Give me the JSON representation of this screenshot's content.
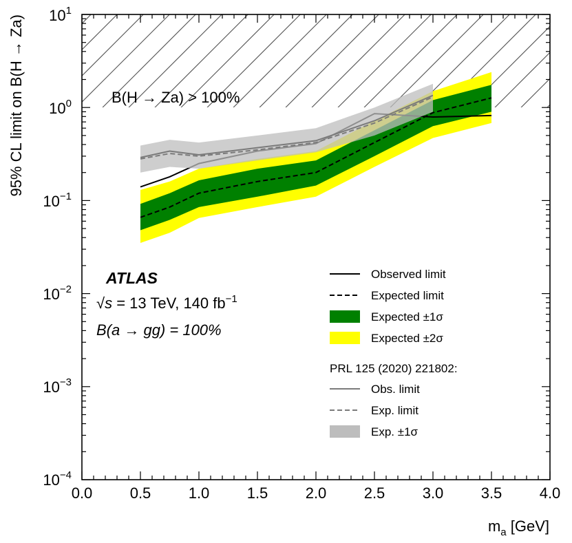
{
  "chart_data": {
    "type": "line",
    "xlabel_main": "m",
    "xlabel_sub": "a",
    "xlabel_unit": "[GeV]",
    "ylabel": "95% CL limit on B(H → Za)",
    "xlim": [
      0.0,
      4.0
    ],
    "ylim": [
      0.0001,
      10
    ],
    "y_scale": "log",
    "x_ticks": [
      "0.0",
      "0.5",
      "1.0",
      "1.5",
      "2.0",
      "2.5",
      "3.0",
      "3.5",
      "4.0"
    ],
    "y_ticks": [
      {
        "base": "10",
        "exp": "1",
        "value": 10
      },
      {
        "base": "10",
        "exp": "0",
        "value": 1
      },
      {
        "base": "10",
        "exp": "−1",
        "value": 0.1
      },
      {
        "base": "10",
        "exp": "−2",
        "value": 0.01
      },
      {
        "base": "10",
        "exp": "−3",
        "value": 0.001
      },
      {
        "base": "10",
        "exp": "−4",
        "value": 0.0001
      }
    ],
    "excluded_region": {
      "label": "B(H → Za) > 100%",
      "y_min": 1
    },
    "experiment": "ATLAS",
    "energy_label": {
      "sqrt": "√",
      "s": "s",
      "rest": " = 13 TeV, 140 fb",
      "sup": "−1"
    },
    "br_label": "B(a → gg) = 100%",
    "x": [
      0.5,
      0.75,
      1.0,
      1.5,
      2.0,
      2.5,
      3.0,
      3.5
    ],
    "series": [
      {
        "name": "Observed limit",
        "style": "solid",
        "color": "#000000",
        "values": [
          0.14,
          0.18,
          0.25,
          0.34,
          0.41,
          0.86,
          0.79,
          0.82
        ]
      },
      {
        "name": "Expected limit",
        "style": "dashed",
        "color": "#000000",
        "values": [
          0.066,
          0.085,
          0.12,
          0.16,
          0.2,
          0.42,
          0.88,
          1.27
        ]
      }
    ],
    "bands": [
      {
        "name": "Expected ±2σ",
        "color": "#ffff00",
        "lower": [
          0.035,
          0.045,
          0.065,
          0.085,
          0.11,
          0.23,
          0.47,
          0.68
        ],
        "upper": [
          0.13,
          0.16,
          0.22,
          0.28,
          0.34,
          0.72,
          1.5,
          2.4
        ]
      },
      {
        "name": "Expected ±1σ",
        "color": "#008000",
        "lower": [
          0.048,
          0.062,
          0.085,
          0.11,
          0.145,
          0.3,
          0.63,
          0.9
        ],
        "upper": [
          0.092,
          0.12,
          0.165,
          0.22,
          0.27,
          0.57,
          1.2,
          1.75
        ]
      }
    ],
    "prl": {
      "title": "PRL 125 (2020) 221802:",
      "x": [
        0.5,
        0.75,
        1.0,
        1.5,
        2.0,
        2.5,
        3.0
      ],
      "band": {
        "name": "Exp. ±1σ",
        "color": "#bdbdbd",
        "lower": [
          0.2,
          0.23,
          0.22,
          0.27,
          0.33,
          0.5,
          0.9
        ],
        "upper": [
          0.39,
          0.45,
          0.42,
          0.5,
          0.6,
          1.0,
          1.8
        ]
      },
      "series": [
        {
          "name": "Obs. limit",
          "style": "solid",
          "color": "#7a7a7a",
          "values": [
            0.29,
            0.34,
            0.31,
            0.37,
            0.44,
            0.72,
            1.35
          ]
        },
        {
          "name": "Exp. limit",
          "style": "dashed",
          "color": "#7a7a7a",
          "values": [
            0.28,
            0.32,
            0.3,
            0.35,
            0.42,
            0.68,
            1.3
          ]
        }
      ]
    },
    "legend": [
      {
        "label": "Observed limit",
        "kind": "line",
        "style": "solid",
        "color": "#000000"
      },
      {
        "label": "Expected limit",
        "kind": "line",
        "style": "dashed",
        "color": "#000000"
      },
      {
        "label": "Expected ±1σ",
        "kind": "box",
        "color": "#008000"
      },
      {
        "label": "Expected ±2σ",
        "kind": "box",
        "color": "#ffff00"
      }
    ],
    "legend_prl": [
      {
        "label": "Obs. limit",
        "kind": "line",
        "style": "solid",
        "color": "#7a7a7a"
      },
      {
        "label": "Exp. limit",
        "kind": "line",
        "style": "dashed",
        "color": "#7a7a7a"
      },
      {
        "label": "Exp. ±1σ",
        "kind": "box",
        "color": "#bdbdbd"
      }
    ]
  }
}
